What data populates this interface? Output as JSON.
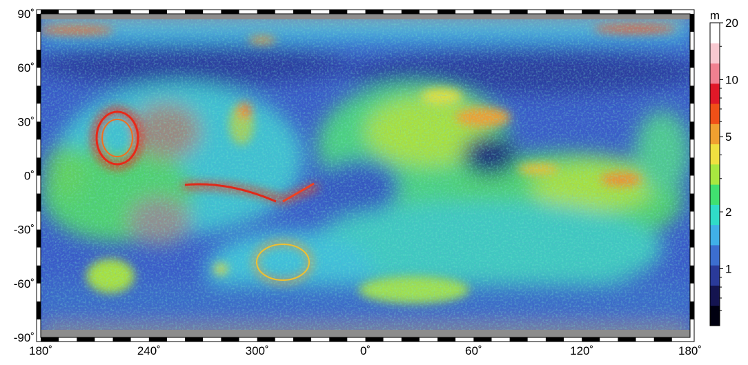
{
  "map": {
    "projection": "equirectangular",
    "data_visualized": "color-coded map field in meters",
    "lat_ticks": [
      {
        "value": 90,
        "label": "90˚"
      },
      {
        "value": 60,
        "label": "60˚"
      },
      {
        "value": 30,
        "label": "30˚"
      },
      {
        "value": 0,
        "label": "0˚"
      },
      {
        "value": -30,
        "label": "-30˚"
      },
      {
        "value": -60,
        "label": "-60˚"
      },
      {
        "value": -90,
        "label": "-90˚"
      }
    ],
    "lon_ticks": [
      {
        "value": 180,
        "label": "180˚"
      },
      {
        "value": 240,
        "label": "240˚"
      },
      {
        "value": 300,
        "label": "300˚"
      },
      {
        "value": 0,
        "label": "0˚"
      },
      {
        "value": 60,
        "label": "60˚"
      },
      {
        "value": 120,
        "label": "120˚"
      },
      {
        "value": 180,
        "label": "180˚"
      }
    ],
    "lon_range": [
      180,
      540
    ],
    "lat_range": [
      -90,
      90
    ],
    "frame_colors": [
      "#000000",
      "#ffffff"
    ]
  },
  "colorbar": {
    "unit": "m",
    "scale": "log",
    "range": [
      0.5,
      20
    ],
    "ticks": [
      {
        "value": 20,
        "label": "20"
      },
      {
        "value": 10,
        "label": "10"
      },
      {
        "value": 5,
        "label": "5"
      },
      {
        "value": 2,
        "label": "2"
      },
      {
        "value": 1,
        "label": "1"
      }
    ],
    "colors": [
      "#000010",
      "#141450",
      "#2a3a9a",
      "#3c6ed0",
      "#40b0e8",
      "#30dcc8",
      "#40e070",
      "#a8e840",
      "#f0e040",
      "#f0a030",
      "#f05018",
      "#e01828",
      "#f08090",
      "#f8c8d0",
      "#ffffff"
    ]
  },
  "palette": {
    "ocean_blue": "#3a5cc8",
    "deep_blue": "#2c3c9e",
    "cyan": "#3cc8e0",
    "green": "#50d870",
    "yellow": "#e6e050",
    "orange": "#f0a030",
    "red": "#e03020",
    "gray": "#8c8c8c"
  }
}
